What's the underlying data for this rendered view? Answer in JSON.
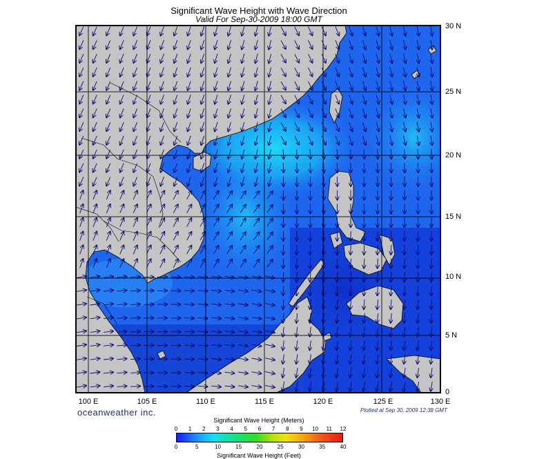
{
  "title": "Significant Wave Height with Wave Direction",
  "subtitle": "Valid For Sep-30-2009 18:00 GMT",
  "brand": "oceanweather inc.",
  "plotted": "Plotted at Sep 30, 2009 12:38 GMT",
  "map": {
    "lon_range": [
      99,
      130
    ],
    "lat_range": [
      0,
      30
    ],
    "lon_ticks": [
      "100 E",
      "105 E",
      "110 E",
      "115 E",
      "120 E",
      "125 E",
      "130 E"
    ],
    "lat_ticks": [
      "30 N",
      "25 N",
      "20 N",
      "15 N",
      "10 N",
      "5 N",
      "0"
    ],
    "grid": true,
    "land_color": "#c4c4c4",
    "sea_colors": {
      "deep": "#1446dc",
      "mid": "#1f7af5",
      "bright": "#19d2f5"
    }
  },
  "legend": {
    "title_meters": "Significant Wave Height (Meters)",
    "title_feet": "Significant Wave Height (Feet)",
    "meters": [
      "0",
      "1",
      "2",
      "3",
      "4",
      "5",
      "6",
      "7",
      "8",
      "9",
      "10",
      "11",
      "12"
    ],
    "feet": [
      "0",
      "5",
      "10",
      "15",
      "20",
      "25",
      "30",
      "35",
      "40"
    ]
  }
}
